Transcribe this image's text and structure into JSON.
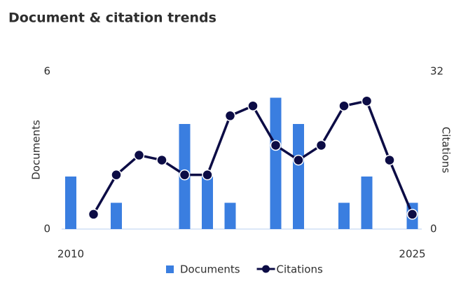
{
  "chart_data": {
    "type": "bar-line",
    "title": "Document & citation trends",
    "categories": [
      "2010",
      null,
      null,
      null,
      null,
      null,
      null,
      null,
      null,
      null,
      null,
      null,
      null,
      null,
      null,
      "2025"
    ],
    "series": [
      {
        "name": "Documents",
        "type": "bar",
        "color": "#3a7ee0",
        "axis": "y",
        "values": [
          2,
          0,
          1,
          0,
          0,
          4,
          2,
          1,
          0,
          5,
          4,
          0,
          1,
          2,
          0,
          1
        ]
      },
      {
        "name": "Citations",
        "type": "line",
        "color": "#0c0c45",
        "axis": "y2",
        "values": [
          null,
          3,
          11,
          15,
          14,
          11,
          11,
          23,
          25,
          17,
          14,
          17,
          25,
          26,
          14,
          3
        ]
      }
    ],
    "ylabel": "Documents",
    "y2label": "Citations",
    "ylim": [
      0,
      6
    ],
    "yticks": [
      0,
      6
    ],
    "y2lim": [
      0,
      32
    ],
    "y2ticks": [
      0,
      32
    ]
  }
}
